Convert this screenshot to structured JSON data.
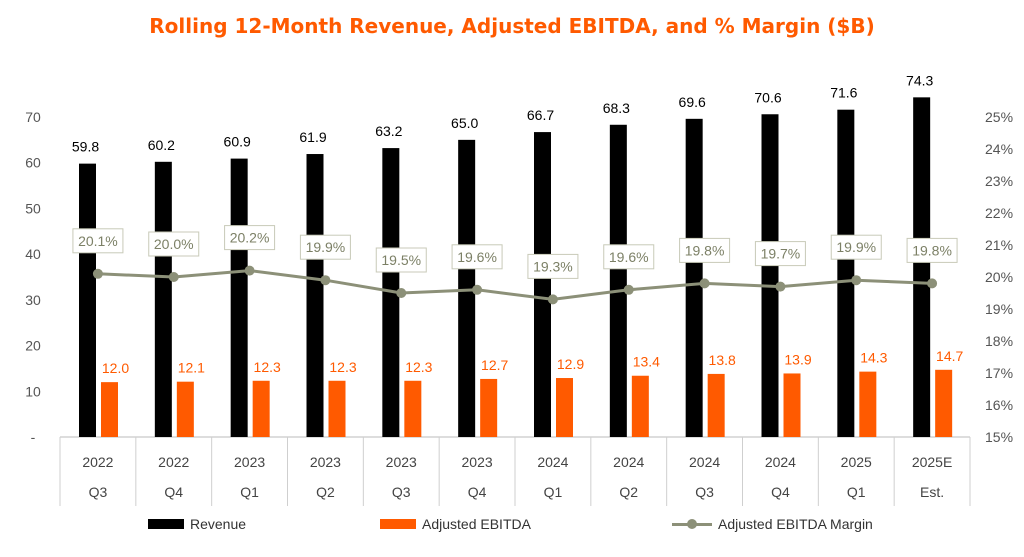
{
  "chart_data": {
    "type": "bar",
    "title": "Rolling 12-Month Revenue, Adjusted EBITDA, and % Margin ($B)",
    "categories": [
      [
        "2022",
        "Q3"
      ],
      [
        "2022",
        "Q4"
      ],
      [
        "2023",
        "Q1"
      ],
      [
        "2023",
        "Q2"
      ],
      [
        "2023",
        "Q3"
      ],
      [
        "2023",
        "Q4"
      ],
      [
        "2024",
        "Q1"
      ],
      [
        "2024",
        "Q2"
      ],
      [
        "2024",
        "Q3"
      ],
      [
        "2024",
        "Q4"
      ],
      [
        "2025",
        "Q1"
      ],
      [
        "2025E",
        "Est."
      ]
    ],
    "series": [
      {
        "name": "Revenue",
        "type": "bar",
        "axis": "left",
        "color": "#000000",
        "values": [
          59.8,
          60.2,
          60.9,
          61.9,
          63.2,
          65.0,
          66.7,
          68.3,
          69.6,
          70.6,
          71.6,
          74.3
        ],
        "labels": [
          "59.8",
          "60.2",
          "60.9",
          "61.9",
          "63.2",
          "65.0",
          "66.7",
          "68.3",
          "69.6",
          "70.6",
          "71.6",
          "74.3"
        ]
      },
      {
        "name": "Adjusted EBITDA",
        "type": "bar",
        "axis": "left",
        "color": "#ff5a00",
        "values": [
          12.0,
          12.1,
          12.3,
          12.3,
          12.3,
          12.7,
          12.9,
          13.4,
          13.8,
          13.9,
          14.3,
          14.7
        ],
        "labels": [
          "12.0",
          "12.1",
          "12.3",
          "12.3",
          "12.3",
          "12.7",
          "12.9",
          "13.4",
          "13.8",
          "13.9",
          "14.3",
          "14.7"
        ]
      },
      {
        "name": "Adjusted EBITDA Margin",
        "type": "line",
        "axis": "right",
        "color": "#8c9078",
        "values": [
          20.1,
          20.0,
          20.2,
          19.9,
          19.5,
          19.6,
          19.3,
          19.6,
          19.8,
          19.7,
          19.9,
          19.8
        ],
        "labels": [
          "20.1%",
          "20.0%",
          "20.2%",
          "19.9%",
          "19.5%",
          "19.6%",
          "19.3%",
          "19.6%",
          "19.8%",
          "19.7%",
          "19.9%",
          "19.8%"
        ]
      }
    ],
    "y_left": {
      "ylim": [
        0,
        70
      ],
      "ticks": [
        0,
        10,
        20,
        30,
        40,
        50,
        60,
        70
      ],
      "tick_labels": [
        "-",
        "10",
        "20",
        "30",
        "40",
        "50",
        "60",
        "70"
      ]
    },
    "y_right": {
      "ylim": [
        15,
        25
      ],
      "ticks": [
        15,
        16,
        17,
        18,
        19,
        20,
        21,
        22,
        23,
        24,
        25
      ],
      "tick_labels": [
        "15%",
        "16%",
        "17%",
        "18%",
        "19%",
        "20%",
        "21%",
        "22%",
        "23%",
        "24%",
        "25%"
      ]
    },
    "grid": false,
    "legend_position": "bottom",
    "title_color": "#ff5a00"
  }
}
